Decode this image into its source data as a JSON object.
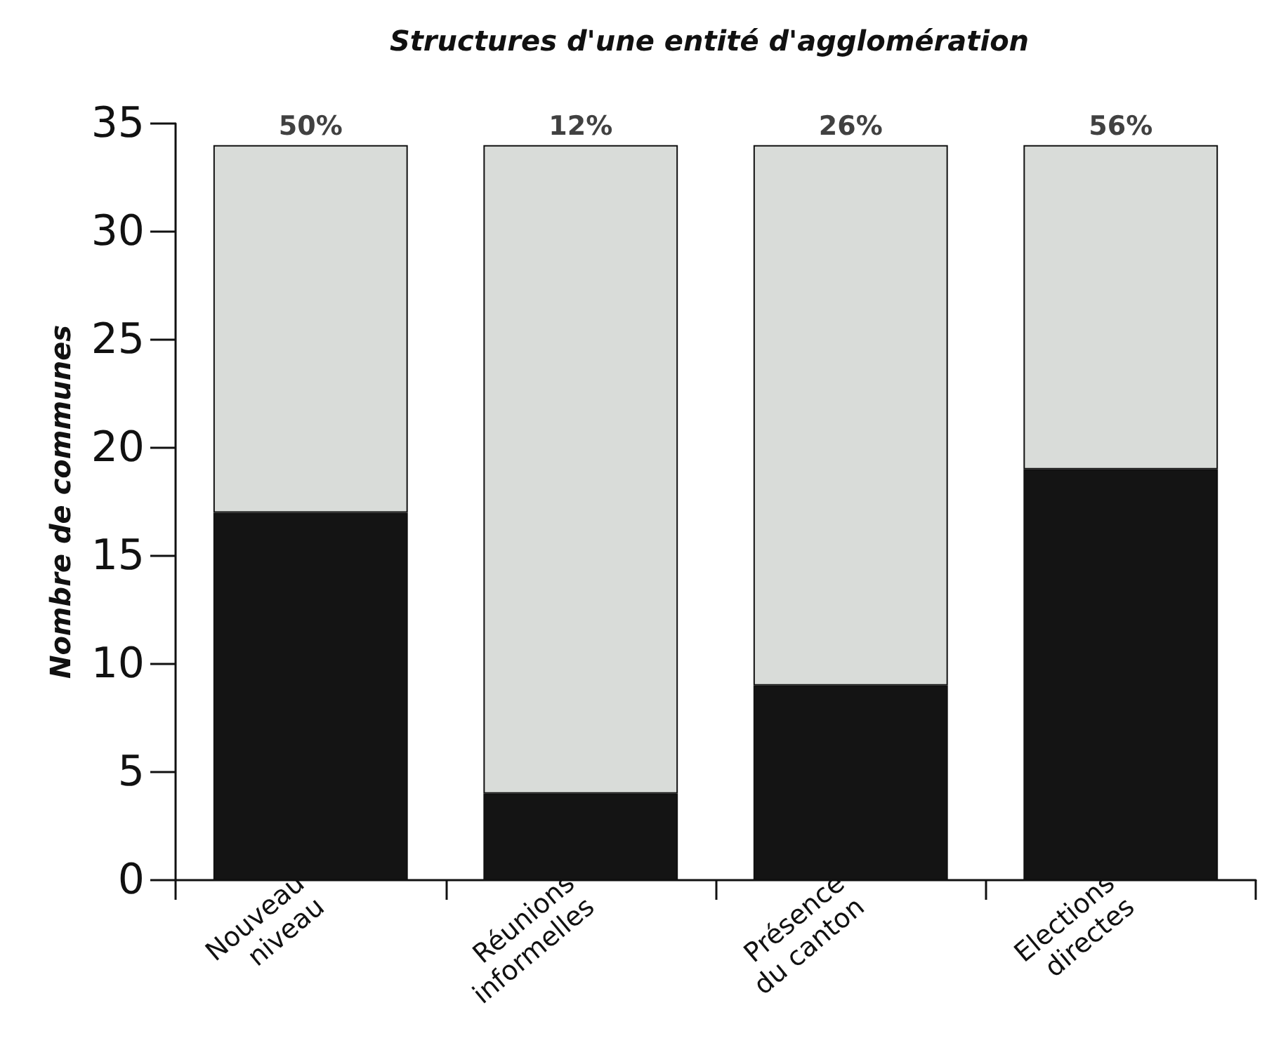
{
  "chart_data": {
    "type": "bar",
    "title": "Structures d'une entité d'agglomération",
    "ylabel": "Nombre de communes",
    "categories": [
      "Nouveau\nniveau",
      "Réunions\ninformelles",
      "Présence\ndu canton",
      "Elections\ndirectes"
    ],
    "stacked": true,
    "series": [
      {
        "color": "#141414",
        "values": [
          17,
          4,
          9,
          19
        ]
      },
      {
        "color": "#d9dcd9",
        "values": [
          17,
          30,
          25,
          15
        ]
      }
    ],
    "annotations": [
      {
        "text": "50%",
        "x": "Nouveau\nniveau",
        "y": 34
      },
      {
        "text": "12%",
        "x": "Réunions\ninformelles",
        "y": 34
      },
      {
        "text": "26%",
        "x": "Présence\ndu canton",
        "y": 34
      },
      {
        "text": "56%",
        "x": "Elections\ndirectes",
        "y": 34
      }
    ],
    "ylim": [
      0,
      35
    ],
    "yticks": [
      0,
      5,
      10,
      15,
      20,
      25,
      30,
      35
    ],
    "grid": false
  }
}
